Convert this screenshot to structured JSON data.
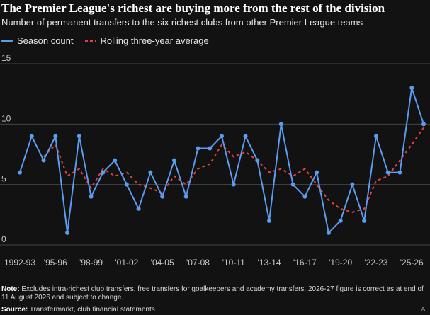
{
  "header": {
    "title": "The Premier League's richest are buying more from the rest of the division",
    "subtitle": "Number of permanent transfers to the six richest clubs from other Premier League teams"
  },
  "legend": {
    "season_label": "Season count",
    "rolling_label": "Rolling three-year average"
  },
  "colors": {
    "background": "#121212",
    "season": "#5b9bf0",
    "rolling": "#e0443e",
    "grid": "#444444",
    "axis_text": "#c8c8c8"
  },
  "footer": {
    "note_label": "Note:",
    "note_text": " Excludes intra-richest club transfers, free transfers for goalkeepers and academy transfers. 2026-27 figure is correct as at end of 11 August 2026 and subject to change.",
    "source_label": "Source:",
    "source_text": " Transfermarkt, club financial statements",
    "brand": "A"
  },
  "chart_data": {
    "type": "line",
    "x_tick_labels": [
      "1992-93",
      "'95-96",
      "'98-99",
      "'01-02",
      "'04-05",
      "'07-08",
      "'10-11",
      "'13-14",
      "'16-17",
      "'19-20",
      "'22-23",
      "'25-26"
    ],
    "x_tick_every": 3,
    "ylim": [
      0,
      15
    ],
    "yticks": [
      0,
      5,
      10,
      15
    ],
    "grid": true,
    "legend_position": "top-left",
    "series": [
      {
        "name": "Season count",
        "style": "line-with-markers",
        "values": [
          6,
          9,
          7,
          9,
          1,
          9,
          4,
          6,
          7,
          5,
          3,
          6,
          4,
          7,
          4,
          8,
          8,
          9,
          5,
          9,
          7,
          2,
          10,
          5,
          4,
          6,
          1,
          2,
          5,
          2,
          9,
          6,
          6,
          13,
          10
        ]
      },
      {
        "name": "Rolling three-year average",
        "style": "dashed",
        "values": [
          null,
          null,
          7.3,
          8.3,
          5.7,
          6.3,
          4.7,
          6.3,
          5.7,
          6.0,
          5.0,
          4.7,
          4.3,
          5.7,
          5.0,
          6.3,
          6.7,
          8.3,
          7.3,
          7.7,
          7.0,
          6.0,
          6.3,
          5.7,
          6.3,
          5.0,
          3.7,
          3.0,
          2.7,
          3.0,
          5.3,
          5.7,
          7.0,
          8.3,
          9.7
        ]
      }
    ]
  }
}
